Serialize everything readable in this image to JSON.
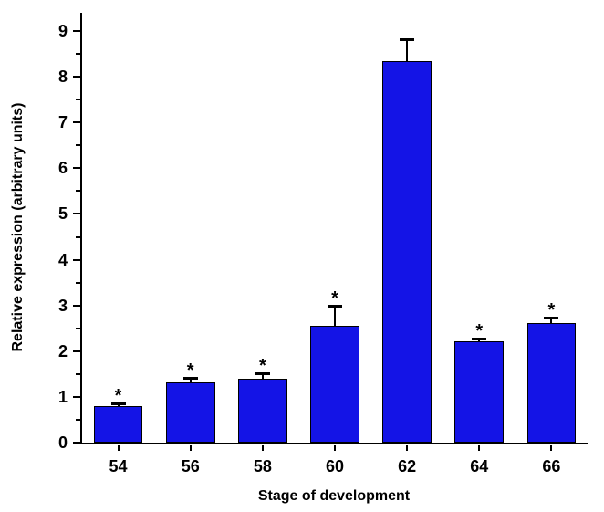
{
  "chart_data": {
    "type": "bar",
    "title": "",
    "categories": [
      "54",
      "56",
      "58",
      "60",
      "62",
      "64",
      "66"
    ],
    "values": [
      0.8,
      1.32,
      1.4,
      2.55,
      8.35,
      2.22,
      2.62
    ],
    "errors": [
      0.06,
      0.1,
      0.12,
      0.45,
      0.48,
      0.06,
      0.12
    ],
    "significance": [
      "*",
      "*",
      "*",
      "*",
      "",
      "*",
      "*"
    ],
    "xlabel": "Stage of development",
    "ylabel": "Relative expression (arbitrary units)",
    "ylim": [
      0,
      9.4
    ],
    "yticks": [
      0,
      1,
      2,
      3,
      4,
      5,
      6,
      7,
      8,
      9
    ],
    "minor_tick_step": 0.5,
    "bar_color": "#1414e6",
    "bar_border_color": "#000000",
    "error_bar_color": "#000000",
    "axis_color": "#000000",
    "grid": false,
    "legend": false
  }
}
